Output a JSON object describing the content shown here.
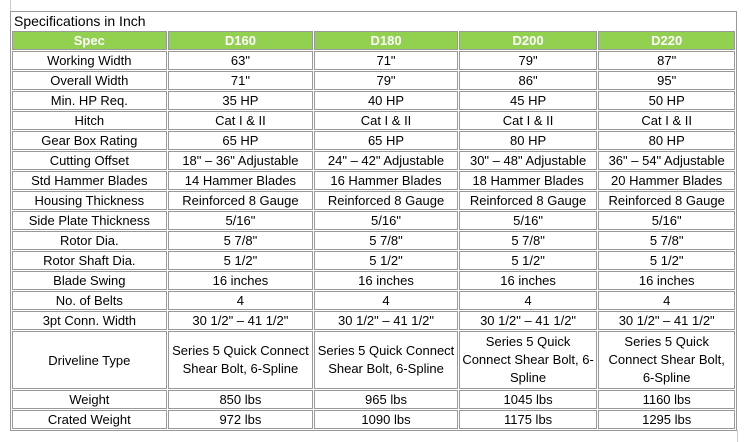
{
  "title": "Specifications in Inch",
  "accent_color": "#92d050",
  "headers": [
    "Spec",
    "D160",
    "D180",
    "D200",
    "D220"
  ],
  "rows": [
    [
      "Working Width",
      "63\"",
      "71\"",
      "79\"",
      "87\""
    ],
    [
      "Overall Width",
      "71\"",
      "79\"",
      "86\"",
      "95\""
    ],
    [
      "Min. HP Req.",
      "35 HP",
      "40 HP",
      "45 HP",
      "50 HP"
    ],
    [
      "Hitch",
      "Cat I & II",
      "Cat I & II",
      "Cat I & II",
      "Cat I & II"
    ],
    [
      "Gear Box Rating",
      "65 HP",
      "65 HP",
      "80 HP",
      "80 HP"
    ],
    [
      "Cutting Offset",
      "18\" – 36\" Adjustable",
      "24\" – 42\" Adjustable",
      "30\" – 48\" Adjustable",
      "36\" – 54\" Adjustable"
    ],
    [
      "Std Hammer Blades",
      "14 Hammer Blades",
      "16 Hammer Blades",
      "18 Hammer Blades",
      "20 Hammer Blades"
    ],
    [
      "Housing Thickness",
      "Reinforced 8 Gauge",
      "Reinforced 8 Gauge",
      "Reinforced 8 Gauge",
      "Reinforced 8 Gauge"
    ],
    [
      "Side Plate Thickness",
      "5/16\"",
      "5/16\"",
      "5/16\"",
      "5/16\""
    ],
    [
      "Rotor Dia.",
      "5 7/8\"",
      "5 7/8\"",
      "5 7/8\"",
      "5 7/8\""
    ],
    [
      "Rotor Shaft Dia.",
      "5 1/2\"",
      "5 1/2\"",
      "5 1/2\"",
      "5 1/2\""
    ],
    [
      "Blade Swing",
      "16 inches",
      "16 inches",
      "16 inches",
      "16 inches"
    ],
    [
      "No. of Belts",
      "4",
      "4",
      "4",
      "4"
    ],
    [
      "3pt Conn. Width",
      "30 1/2\" – 41 1/2\"",
      "30 1/2\" – 41 1/2\"",
      "30 1/2\" – 41 1/2\"",
      "30 1/2\" – 41 1/2\""
    ],
    [
      "Driveline Type",
      "Series 5 Quick Connect Shear Bolt, 6-Spline",
      "Series 5 Quick Connect Shear Bolt, 6-Spline",
      "Series 5 Quick Connect Shear Bolt, 6-Spline",
      "Series 5 Quick Connect Shear Bolt, 6-Spline"
    ],
    [
      "Weight",
      "850 lbs",
      "965 lbs",
      "1045 lbs",
      "1160 lbs"
    ],
    [
      "Crated Weight",
      "972 lbs",
      "1090 lbs",
      "1175 lbs",
      "1295 lbs"
    ]
  ]
}
